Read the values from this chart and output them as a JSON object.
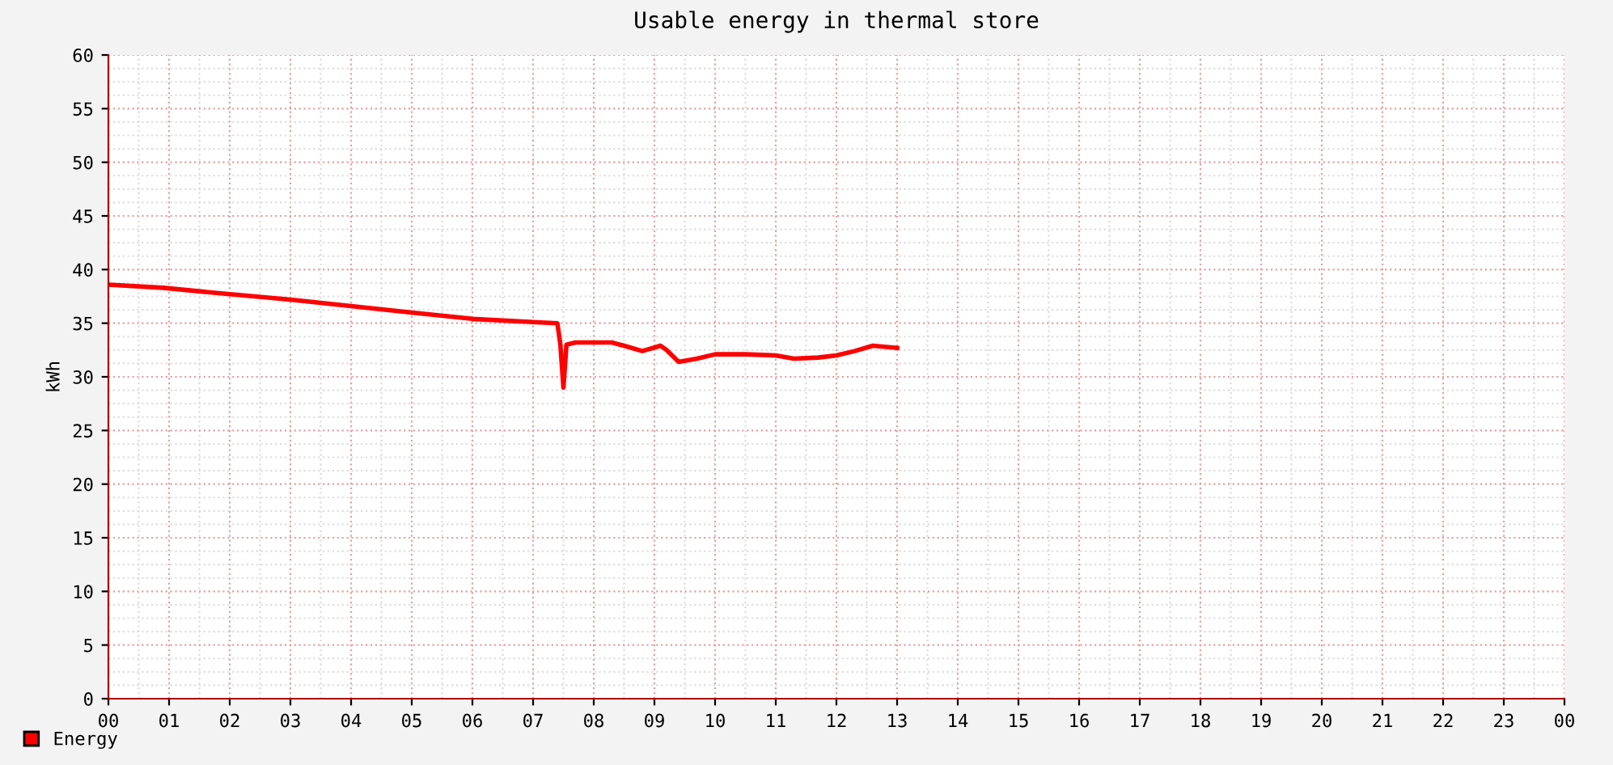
{
  "chart_data": {
    "type": "line",
    "title": "Usable energy in thermal store",
    "ylabel": "kWh",
    "x": [
      0,
      0.9,
      2,
      3,
      4,
      5,
      6,
      7,
      7.4,
      7.45,
      7.5,
      7.55,
      7.7,
      8.0,
      8.3,
      8.5,
      8.8,
      9.1,
      9.2,
      9.4,
      9.7,
      10.0,
      10.5,
      11.0,
      11.3,
      11.7,
      12.0,
      12.3,
      12.6,
      13.0
    ],
    "series": [
      {
        "name": "Energy",
        "color": "#ff0000",
        "values": [
          38.6,
          38.3,
          37.7,
          37.2,
          36.6,
          36.0,
          35.4,
          35.1,
          35.0,
          33.0,
          29.0,
          33.0,
          33.2,
          33.2,
          33.2,
          32.9,
          32.4,
          32.9,
          32.5,
          31.4,
          31.7,
          32.1,
          32.1,
          32.0,
          31.7,
          31.8,
          32.0,
          32.4,
          32.9,
          32.7
        ]
      }
    ],
    "xlim": [
      0,
      24
    ],
    "xticks": [
      {
        "value": 0,
        "label": "00"
      },
      {
        "value": 1,
        "label": "01"
      },
      {
        "value": 2,
        "label": "02"
      },
      {
        "value": 3,
        "label": "03"
      },
      {
        "value": 4,
        "label": "04"
      },
      {
        "value": 5,
        "label": "05"
      },
      {
        "value": 6,
        "label": "06"
      },
      {
        "value": 7,
        "label": "07"
      },
      {
        "value": 8,
        "label": "08"
      },
      {
        "value": 9,
        "label": "09"
      },
      {
        "value": 10,
        "label": "10"
      },
      {
        "value": 11,
        "label": "11"
      },
      {
        "value": 12,
        "label": "12"
      },
      {
        "value": 13,
        "label": "13"
      },
      {
        "value": 14,
        "label": "14"
      },
      {
        "value": 15,
        "label": "15"
      },
      {
        "value": 16,
        "label": "16"
      },
      {
        "value": 17,
        "label": "17"
      },
      {
        "value": 18,
        "label": "18"
      },
      {
        "value": 19,
        "label": "19"
      },
      {
        "value": 20,
        "label": "20"
      },
      {
        "value": 21,
        "label": "21"
      },
      {
        "value": 22,
        "label": "22"
      },
      {
        "value": 23,
        "label": "23"
      },
      {
        "value": 24,
        "label": "00"
      }
    ],
    "ylim": [
      0,
      60
    ],
    "yticks": [
      0,
      5,
      10,
      15,
      20,
      25,
      30,
      35,
      40,
      45,
      50,
      55,
      60
    ],
    "grid": true,
    "legend": "bottom",
    "marker": "none",
    "line_style": "solid"
  }
}
